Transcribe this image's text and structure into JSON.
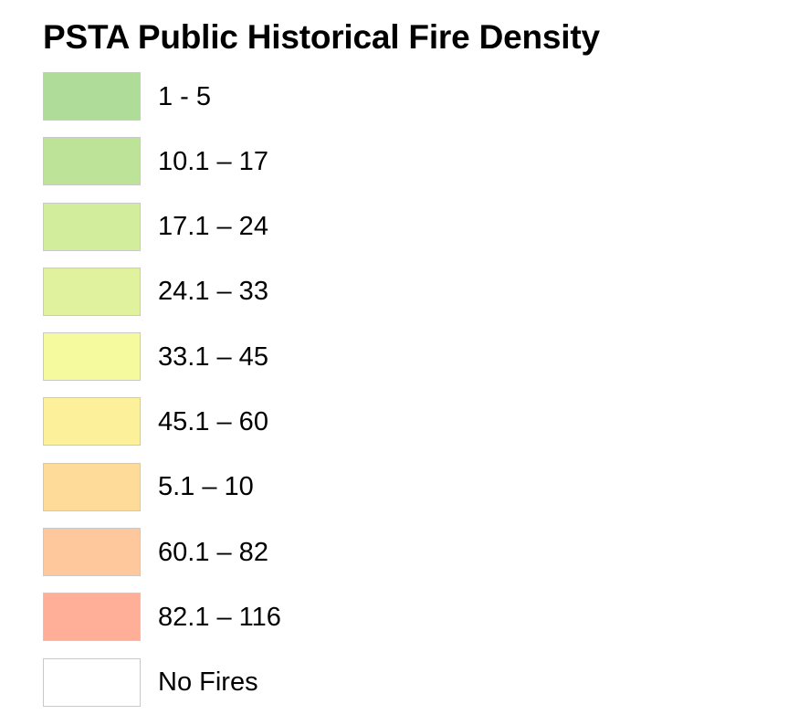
{
  "legend": {
    "title": "PSTA Public Historical Fire Density",
    "items": [
      {
        "label": "1 - 5",
        "color": "#b0dc9a"
      },
      {
        "label": "10.1 – 17",
        "color": "#bde398"
      },
      {
        "label": "17.1 – 24",
        "color": "#d2ee9d"
      },
      {
        "label": "24.1 – 33",
        "color": "#e1f29f"
      },
      {
        "label": "33.1 – 45",
        "color": "#f5fa9e"
      },
      {
        "label": "45.1 – 60",
        "color": "#fdf09a"
      },
      {
        "label": "5.1 – 10",
        "color": "#fedb99"
      },
      {
        "label": "60.1 – 82",
        "color": "#fec89c"
      },
      {
        "label": "82.1 – 116",
        "color": "#ffaf98"
      },
      {
        "label": "No Fires",
        "color": "#ffffff"
      }
    ]
  }
}
